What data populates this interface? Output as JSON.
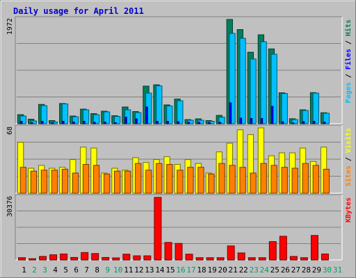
{
  "chart_data": {
    "type": "bar",
    "title": "Daily usage for April 2011",
    "categories": [
      "1",
      "2",
      "3",
      "4",
      "5",
      "6",
      "7",
      "8",
      "9",
      "10",
      "11",
      "12",
      "13",
      "14",
      "15",
      "16",
      "17",
      "18",
      "19",
      "20",
      "21",
      "22",
      "23",
      "24",
      "25",
      "26",
      "27",
      "28",
      "29",
      "30",
      "31"
    ],
    "weekend_days": [
      "2",
      "3",
      "9",
      "10",
      "16",
      "17",
      "23",
      "24",
      "30",
      "31"
    ],
    "colors": {
      "title": "#0000cc",
      "hits": "#007f5e",
      "files": "#00c0ff",
      "pages": "#0000ff",
      "visits": "#ffff00",
      "sites": "#ff8000",
      "kbytes": "#ff0000",
      "weekend_label": "#00a060",
      "weekday_label": "#000000",
      "panel_bg": "#c0c0c0",
      "grid": "#808080"
    },
    "panels": [
      {
        "name": "hits-files-pages",
        "max_label": "1972",
        "ymax": 1972,
        "legend": [
          {
            "text": "Hits",
            "color": "#007f5e"
          },
          {
            "text": "Files",
            "color": "#0000ff"
          },
          {
            "text": "Pages",
            "color": "#00c0ff"
          }
        ],
        "series": [
          {
            "name": "Hits",
            "color": "#007f5e",
            "values": [
              171,
              85,
              365,
              59,
              382,
              145,
              276,
              191,
              237,
              151,
              316,
              230,
              711,
              736,
              356,
              467,
              78,
              92,
              59,
              157,
              1972,
              1781,
              1352,
              1682,
              1415,
              585,
              94,
              263,
              588,
              208
            ]
          },
          {
            "name": "Files",
            "color": "#00c0ff",
            "values": [
              145,
              53,
              342,
              33,
              375,
              132,
              263,
              171,
              224,
              138,
              263,
              211,
              579,
              717,
              336,
              434,
              66,
              66,
              46,
              125,
              1709,
              1615,
              1224,
              1551,
              1314,
              572,
              79,
              250,
              579,
              198
            ]
          },
          {
            "name": "Pages",
            "color": "#0000ff",
            "values": [
              46,
              20,
              46,
              13,
              46,
              33,
              46,
              26,
              33,
              20,
              125,
              92,
              316,
              46,
              46,
              40,
              26,
              26,
              20,
              26,
              395,
              105,
              99,
              99,
              329,
              39,
              13,
              39,
              46,
              33
            ]
          }
        ]
      },
      {
        "name": "visits-sites",
        "max_label": "68",
        "ymax": 68,
        "legend": [
          {
            "text": "Visits",
            "color": "#ffff00"
          },
          {
            "text": "Sites",
            "color": "#ff8000"
          }
        ],
        "series": [
          {
            "name": "Visits",
            "color": "#ffff00",
            "values": [
              53,
              26,
              29,
              26,
              27,
              35,
              48,
              47,
              21,
              26,
              24,
              37,
              32,
              35,
              38,
              30,
              35,
              31,
              21,
              43,
              52,
              66,
              61,
              68,
              39,
              42,
              42,
              47,
              33,
              48
            ]
          },
          {
            "name": "Sites",
            "color": "#ff8000",
            "values": [
              27,
              23,
              24,
              24,
              25,
              21,
              30,
              29,
              20,
              23,
              23,
              31,
              24,
              31,
              30,
              24,
              27,
              27,
              20,
              31,
              29,
              27,
              21,
              31,
              29,
              27,
              26,
              31,
              29,
              25
            ]
          }
        ]
      },
      {
        "name": "kbytes",
        "max_label": "30376",
        "ymax": 30376,
        "legend": [
          {
            "text": "KBytes",
            "color": "#ff0000"
          }
        ],
        "series": [
          {
            "name": "KBytes",
            "color": "#ff0000",
            "values": [
              1100,
              600,
              1700,
              2500,
              2900,
              1200,
              3600,
              3100,
              1200,
              1000,
              2800,
              2000,
              2000,
              30376,
              8500,
              8000,
              2800,
              1100,
              1100,
              1100,
              6800,
              3400,
              1100,
              1100,
              8900,
              11500,
              1700,
              1100,
              11900,
              2900
            ]
          }
        ]
      }
    ]
  }
}
